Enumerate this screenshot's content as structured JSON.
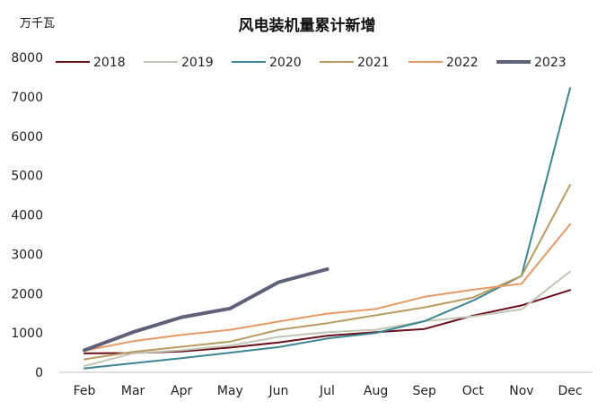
{
  "chart_data": {
    "type": "line",
    "title": "风电装机量累计新增",
    "unit_label": "万千瓦",
    "categories": [
      "Feb",
      "Mar",
      "Apr",
      "May",
      "Jun",
      "Jul",
      "Aug",
      "Sep",
      "Oct",
      "Nov",
      "Dec"
    ],
    "ylim": [
      0,
      8000
    ],
    "yticks": [
      "0",
      "1000",
      "2000",
      "3000",
      "4000",
      "5000",
      "6000",
      "7000",
      "8000"
    ],
    "grid": false,
    "legend_position": "top",
    "series": [
      {
        "name": "2018",
        "color": "#6b0f1a",
        "width": 2,
        "values": [
          480,
          490,
          530,
          630,
          760,
          930,
          1020,
          1100,
          1440,
          1700,
          2090
        ]
      },
      {
        "name": "2019",
        "color": "#c3c6b4",
        "width": 2,
        "values": [
          160,
          480,
          560,
          680,
          900,
          1020,
          1080,
          1300,
          1420,
          1600,
          2560
        ]
      },
      {
        "name": "2020",
        "color": "#3b8595",
        "width": 2,
        "values": [
          100,
          230,
          360,
          500,
          640,
          860,
          1000,
          1300,
          1820,
          2450,
          7220
        ]
      },
      {
        "name": "2021",
        "color": "#b79b62",
        "width": 2,
        "values": [
          330,
          520,
          650,
          780,
          1080,
          1250,
          1450,
          1650,
          1900,
          2450,
          4760
        ]
      },
      {
        "name": "2022",
        "color": "#e59a66",
        "width": 2,
        "values": [
          550,
          790,
          950,
          1080,
          1290,
          1490,
          1610,
          1920,
          2100,
          2250,
          3760
        ]
      },
      {
        "name": "2023",
        "color": "#5f6178",
        "width": 4,
        "values": [
          560,
          1020,
          1400,
          1620,
          2290,
          2620,
          null,
          null,
          null,
          null,
          null
        ]
      }
    ]
  }
}
